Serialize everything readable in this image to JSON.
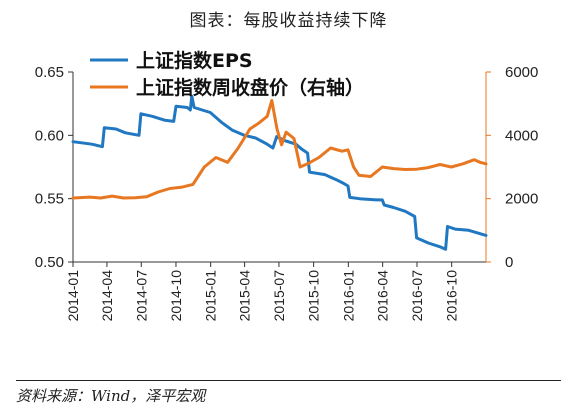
{
  "header": {
    "title": "图表：每股收益持续下降"
  },
  "source": "资料来源：Wind，泽平宏观",
  "chart_data": {
    "type": "line",
    "title": "",
    "x_labels": [
      "2014-01",
      "2014-04",
      "2014-07",
      "2014-10",
      "2015-01",
      "2015-04",
      "2015-07",
      "2015-10",
      "2016-01",
      "2016-04",
      "2016-07",
      "2016-10"
    ],
    "x_range": [
      "2014-01-01",
      "2016-12-31"
    ],
    "y_left": {
      "label": "",
      "ticks": [
        "0.50",
        "0.55",
        "0.60",
        "0.65"
      ],
      "range": [
        0.5,
        0.65
      ]
    },
    "y_right": {
      "label": "",
      "ticks": [
        "0",
        "2000",
        "4000",
        "6000"
      ],
      "range": [
        0,
        6000
      ],
      "color": "#E87722"
    },
    "grid": false,
    "legend_position": "top-left",
    "series": [
      {
        "name": "上证指数EPS",
        "axis": "left",
        "color": "#1F78C1",
        "points": [
          [
            "2014-01-01",
            0.595
          ],
          [
            "2014-02-20",
            0.593
          ],
          [
            "2014-03-20",
            0.591
          ],
          [
            "2014-03-25",
            0.606
          ],
          [
            "2014-04-25",
            0.605
          ],
          [
            "2014-05-20",
            0.602
          ],
          [
            "2014-06-25",
            0.6
          ],
          [
            "2014-06-30",
            0.617
          ],
          [
            "2014-07-30",
            0.615
          ],
          [
            "2014-08-31",
            0.612
          ],
          [
            "2014-09-25",
            0.611
          ],
          [
            "2014-10-01",
            0.623
          ],
          [
            "2014-10-31",
            0.622
          ],
          [
            "2014-11-08",
            0.62
          ],
          [
            "2014-11-12",
            0.631
          ],
          [
            "2014-11-18",
            0.622
          ],
          [
            "2014-12-31",
            0.618
          ],
          [
            "2015-01-31",
            0.61
          ],
          [
            "2015-02-28",
            0.604
          ],
          [
            "2015-03-31",
            0.6
          ],
          [
            "2015-04-30",
            0.598
          ],
          [
            "2015-05-31",
            0.593
          ],
          [
            "2015-06-15",
            0.59
          ],
          [
            "2015-06-25",
            0.599
          ],
          [
            "2015-07-15",
            0.596
          ],
          [
            "2015-08-15",
            0.593
          ],
          [
            "2015-08-31",
            0.589
          ],
          [
            "2015-09-15",
            0.586
          ],
          [
            "2015-09-20",
            0.571
          ],
          [
            "2015-10-31",
            0.569
          ],
          [
            "2015-11-30",
            0.565
          ],
          [
            "2015-12-20",
            0.562
          ],
          [
            "2015-12-31",
            0.56
          ],
          [
            "2016-01-05",
            0.551
          ],
          [
            "2016-01-31",
            0.55
          ],
          [
            "2016-03-15",
            0.549
          ],
          [
            "2016-03-31",
            0.549
          ],
          [
            "2016-04-05",
            0.545
          ],
          [
            "2016-04-30",
            0.543
          ],
          [
            "2016-05-31",
            0.54
          ],
          [
            "2016-06-25",
            0.536
          ],
          [
            "2016-06-30",
            0.519
          ],
          [
            "2016-07-31",
            0.515
          ],
          [
            "2016-08-31",
            0.512
          ],
          [
            "2016-09-15",
            0.51
          ],
          [
            "2016-09-20",
            0.528
          ],
          [
            "2016-10-10",
            0.526
          ],
          [
            "2016-11-15",
            0.525
          ],
          [
            "2016-12-31",
            0.521
          ]
        ]
      },
      {
        "name": "上证指数周收盘价（右轴）",
        "axis": "right",
        "color": "#E87722",
        "points": [
          [
            "2014-01-01",
            2020
          ],
          [
            "2014-02-15",
            2050
          ],
          [
            "2014-03-15",
            2020
          ],
          [
            "2014-04-15",
            2080
          ],
          [
            "2014-05-15",
            2020
          ],
          [
            "2014-06-15",
            2030
          ],
          [
            "2014-07-15",
            2060
          ],
          [
            "2014-08-15",
            2210
          ],
          [
            "2014-09-15",
            2320
          ],
          [
            "2014-10-15",
            2360
          ],
          [
            "2014-11-15",
            2450
          ],
          [
            "2014-12-15",
            3000
          ],
          [
            "2015-01-15",
            3300
          ],
          [
            "2015-02-15",
            3150
          ],
          [
            "2015-03-15",
            3600
          ],
          [
            "2015-04-15",
            4200
          ],
          [
            "2015-05-10",
            4400
          ],
          [
            "2015-05-31",
            4600
          ],
          [
            "2015-06-12",
            5100
          ],
          [
            "2015-06-26",
            4200
          ],
          [
            "2015-07-08",
            3700
          ],
          [
            "2015-07-20",
            4100
          ],
          [
            "2015-08-10",
            3900
          ],
          [
            "2015-08-26",
            3000
          ],
          [
            "2015-09-15",
            3100
          ],
          [
            "2015-10-15",
            3300
          ],
          [
            "2015-11-15",
            3600
          ],
          [
            "2015-12-15",
            3500
          ],
          [
            "2015-12-31",
            3540
          ],
          [
            "2016-01-15",
            3000
          ],
          [
            "2016-01-29",
            2740
          ],
          [
            "2016-02-29",
            2700
          ],
          [
            "2016-03-31",
            3000
          ],
          [
            "2016-04-30",
            2950
          ],
          [
            "2016-05-31",
            2920
          ],
          [
            "2016-06-30",
            2930
          ],
          [
            "2016-07-31",
            2980
          ],
          [
            "2016-08-31",
            3080
          ],
          [
            "2016-09-30",
            3000
          ],
          [
            "2016-10-31",
            3100
          ],
          [
            "2016-11-30",
            3230
          ],
          [
            "2016-12-15",
            3150
          ],
          [
            "2016-12-31",
            3100
          ]
        ]
      }
    ]
  }
}
